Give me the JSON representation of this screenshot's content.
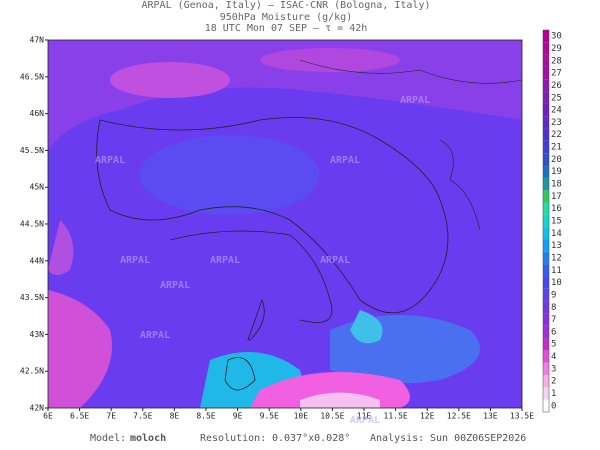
{
  "header": {
    "line1": "ARPAL (Genoa, Italy)  –  ISAC-CNR (Bologna, Italy)",
    "line2": "950hPa Moisture (g/kg)",
    "line3": "18 UTC Mon 07 SEP  –  τ = 42h"
  },
  "map": {
    "lon_labels": [
      "6E",
      "6.5E",
      "7E",
      "7.5E",
      "8E",
      "8.5E",
      "9E",
      "9.5E",
      "10E",
      "10.5E",
      "11E",
      "11.5E",
      "12E",
      "12.5E",
      "13E",
      "13.5E"
    ],
    "lat_labels": [
      "47N",
      "46.5N",
      "46N",
      "45.5N",
      "45N",
      "44.5N",
      "44N",
      "43.5N",
      "43N",
      "42.5N",
      "42N"
    ],
    "watermark": "ARPAL"
  },
  "colorbar": {
    "labels": [
      0,
      1,
      2,
      3,
      4,
      5,
      6,
      7,
      8,
      9,
      10,
      11,
      12,
      13,
      14,
      15,
      16,
      17,
      18,
      19,
      20,
      21,
      22,
      23,
      24,
      25,
      26,
      27,
      28,
      29,
      30
    ],
    "colors": [
      "#ffffff",
      "#f0d8f0",
      "#f5b0e8",
      "#f080e0",
      "#e050d8",
      "#c030c8",
      "#a030d8",
      "#8830e0",
      "#7038e8",
      "#6040f0",
      "#4848f0",
      "#3060f0",
      "#2080f0",
      "#10a0f0",
      "#10c0e8",
      "#10d8d0",
      "#20e0a0",
      "#30c860",
      "#2098a0",
      "#2070c0",
      "#3050d0",
      "#4040d8",
      "#5030d0",
      "#6028c8",
      "#7020c0",
      "#8020b8",
      "#9018b0",
      "#a010a8",
      "#a810a0",
      "#b00898",
      "#b80090"
    ]
  },
  "footer": {
    "model_label": "Model:",
    "model": "moloch",
    "resolution_label": "Resolution:",
    "resolution": "0.037°x0.028°",
    "analysis_label": "Analysis:",
    "analysis": "Sun 00Z06SEP2026"
  }
}
